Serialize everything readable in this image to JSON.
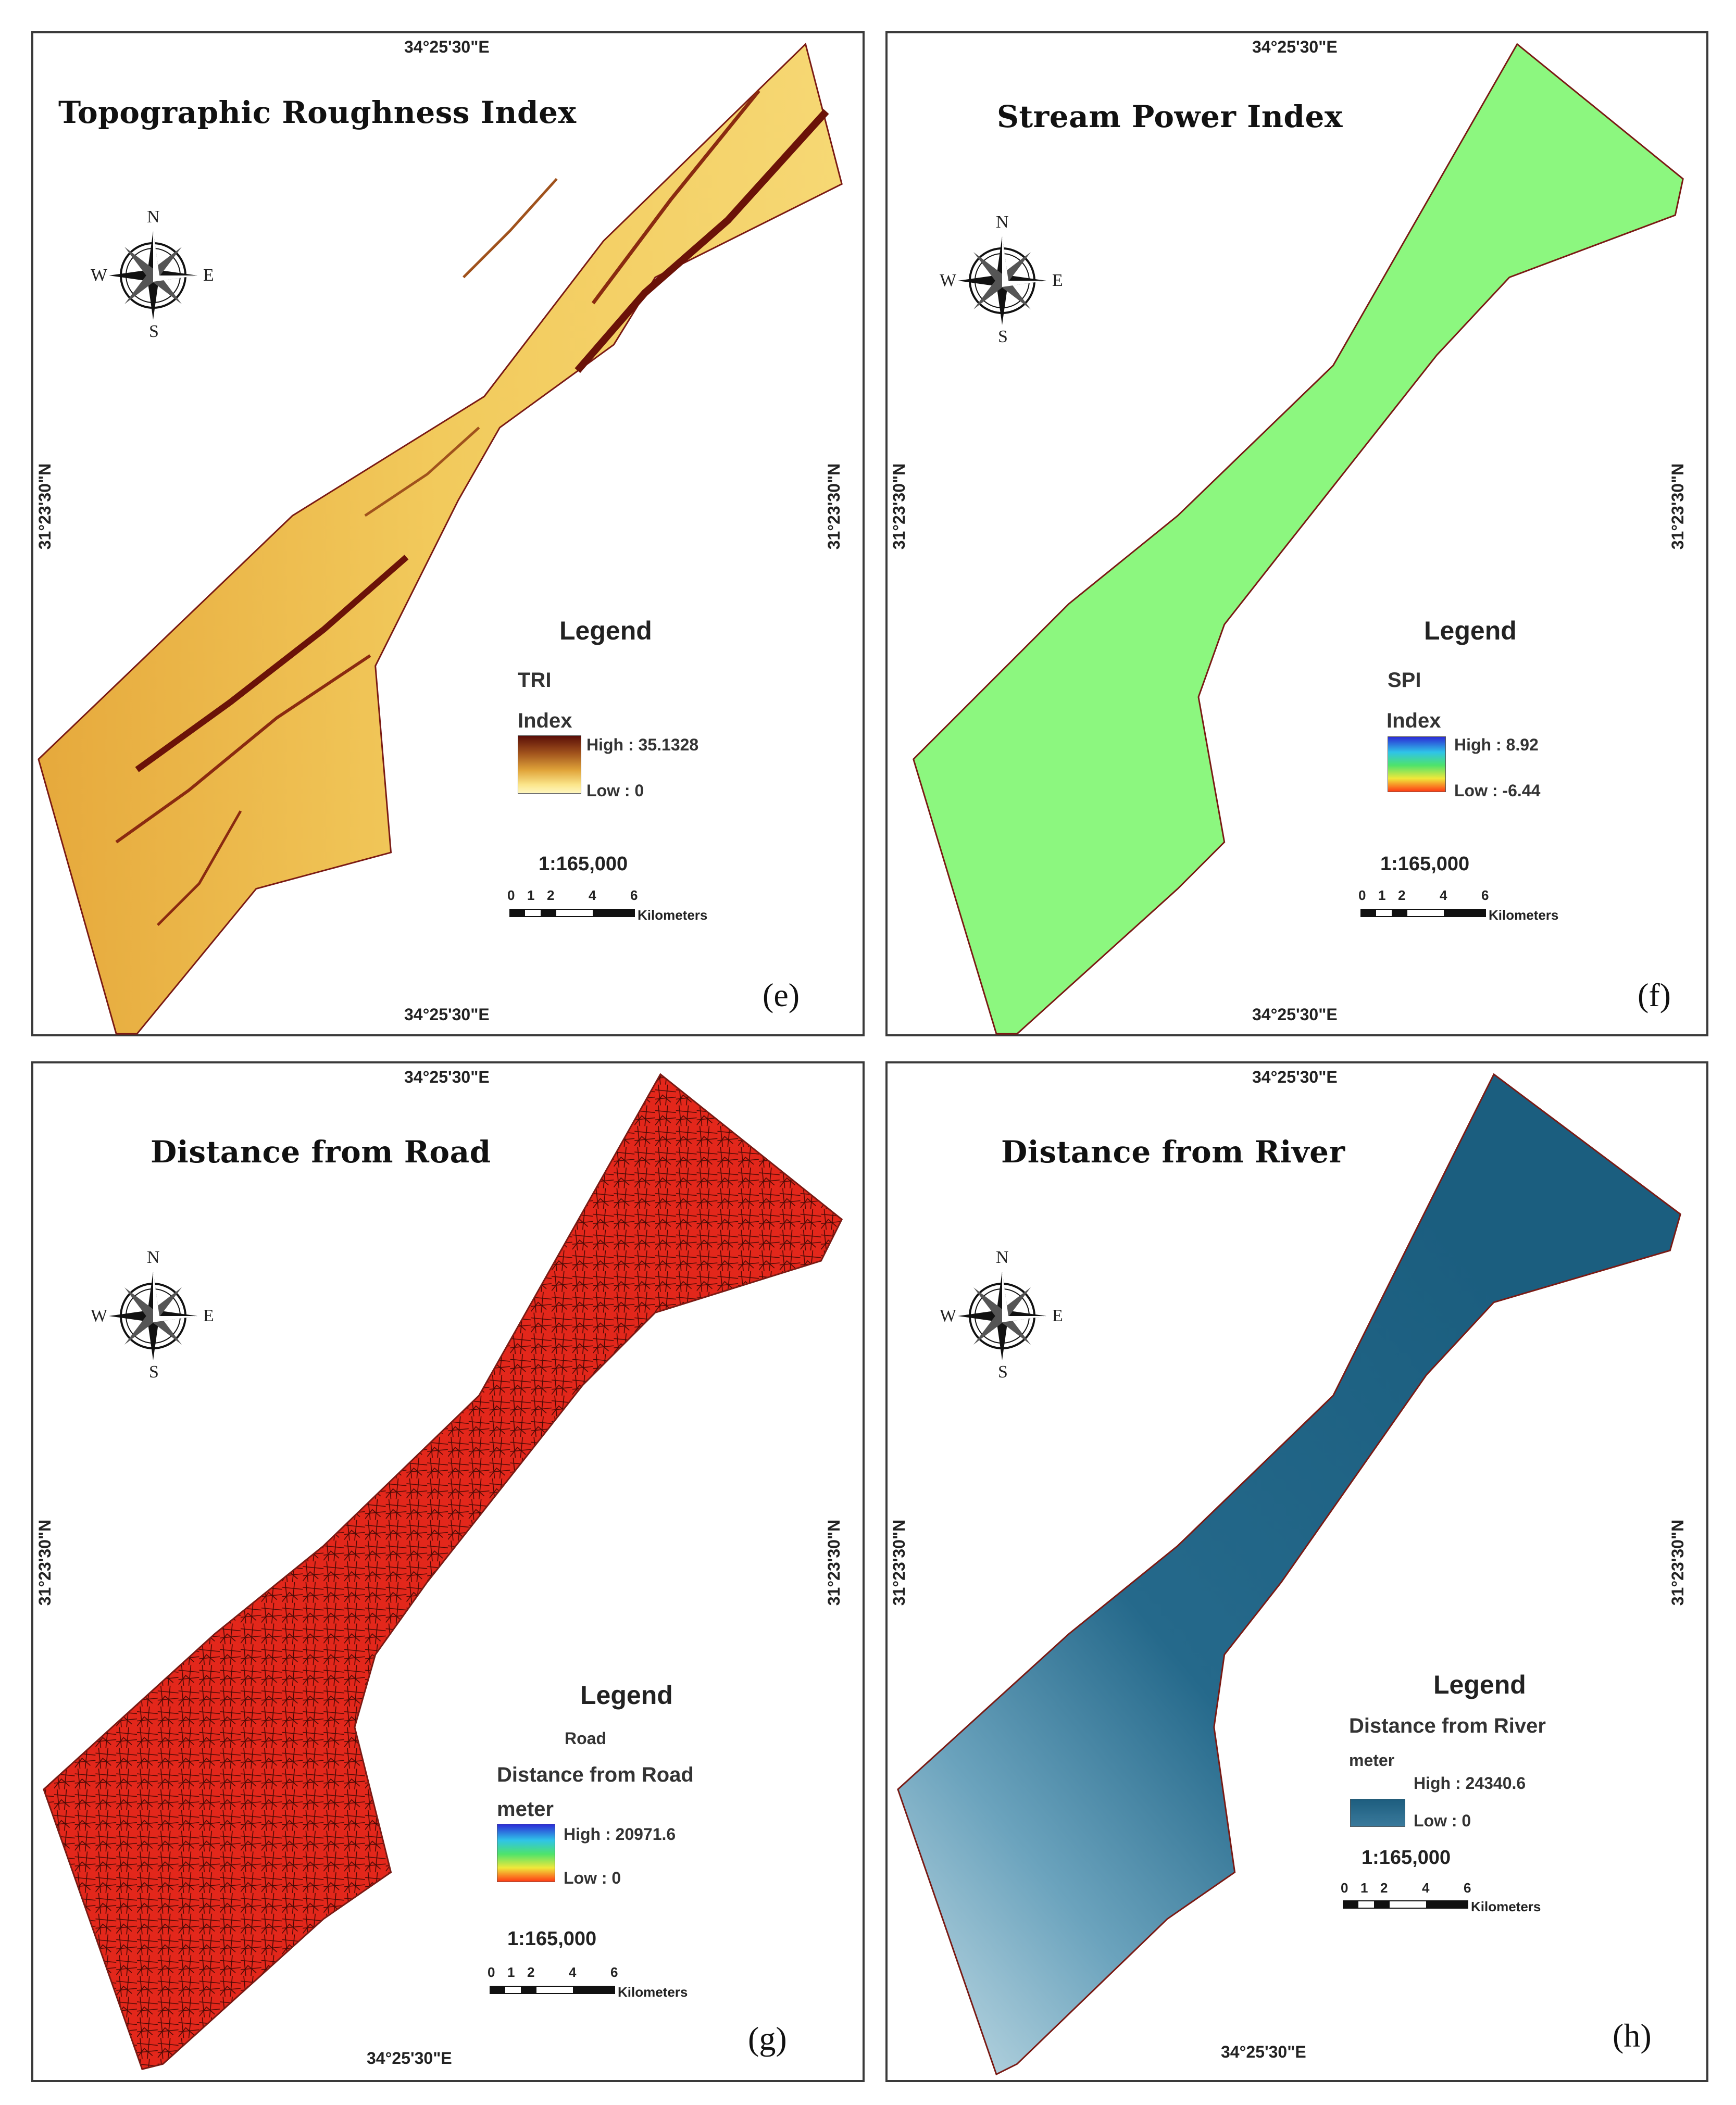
{
  "panels": [
    {
      "id": "e",
      "title": "Topographic Roughness Index",
      "coord_top": "34°25'30\"E",
      "coord_bottom": "34°25'30\"E",
      "coord_left": "31°23'30\"N",
      "coord_right": "31°23'30\"N",
      "legend_heading": "Legend",
      "layer_name": "TRI",
      "unit": "Index",
      "high_label": "High : 35.1328",
      "low_label": "Low : 0",
      "scale_ratio": "1:165,000",
      "scale_ticks": [
        "0",
        "1",
        "2",
        "4",
        "6"
      ],
      "scale_unit": "Kilometers",
      "panel_label": "(e)",
      "ramp_colors": [
        "#5a0e08",
        "#a0521c",
        "#e0a43a",
        "#fbe58a",
        "#fff7c0"
      ]
    },
    {
      "id": "f",
      "title": "Stream Power Index",
      "coord_top": "34°25'30\"E",
      "coord_bottom": "34°25'30\"E",
      "coord_left": "31°23'30\"N",
      "coord_right": "31°23'30\"N",
      "legend_heading": "Legend",
      "layer_name": "SPI",
      "unit": "Index",
      "high_label": "High : 8.92",
      "low_label": "Low : -6.44",
      "scale_ratio": "1:165,000",
      "scale_ticks": [
        "0",
        "1",
        "2",
        "4",
        "6"
      ],
      "scale_unit": "Kilometers",
      "panel_label": "(f)",
      "ramp_colors": [
        "#2b2bd6",
        "#2fc4e8",
        "#4ee36b",
        "#f0e83a",
        "#ff3a14"
      ]
    },
    {
      "id": "g",
      "title": "Distance from Road",
      "coord_top": "34°25'30\"E",
      "coord_bottom": "34°25'30\"E",
      "coord_left": "31°23'30\"N",
      "coord_right": "31°23'30\"N",
      "legend_heading": "Legend",
      "road_label": "Road",
      "layer_name": "Distance from Road",
      "unit": "meter",
      "high_label": "High : 20971.6",
      "low_label": "Low : 0",
      "scale_ratio": "1:165,000",
      "scale_ticks": [
        "0",
        "1",
        "2",
        "4",
        "6"
      ],
      "scale_unit": "Kilometers",
      "panel_label": "(g)",
      "ramp_colors": [
        "#2b2bd6",
        "#2fc4e8",
        "#4ee36b",
        "#f0e83a",
        "#ff3a14"
      ]
    },
    {
      "id": "h",
      "title": "Distance from River",
      "coord_top": "34°25'30\"E",
      "coord_bottom": "34°25'30\"E",
      "coord_left": "31°23'30\"N",
      "coord_right": "31°23'30\"N",
      "legend_heading": "Legend",
      "layer_name": "Distance from River",
      "unit": "meter",
      "high_label": "High : 24340.6",
      "low_label": "Low : 0",
      "scale_ratio": "1:165,000",
      "scale_ticks": [
        "0",
        "1",
        "2",
        "4",
        "6"
      ],
      "scale_unit": "Kilometers",
      "panel_label": "(h)",
      "ramp_colors": [
        "#1d5d7e",
        "#3a7a9c"
      ]
    }
  ],
  "compass": {
    "n": "N",
    "s": "S",
    "e": "E",
    "w": "W"
  },
  "colors": {
    "tri_fill": "#e9b84a",
    "spi_fill": "#8cf77f",
    "road_fill": "#e8261a",
    "river_fill": "#1f6688",
    "river_light": "#c7dde6",
    "outline": "#7a1a14"
  }
}
